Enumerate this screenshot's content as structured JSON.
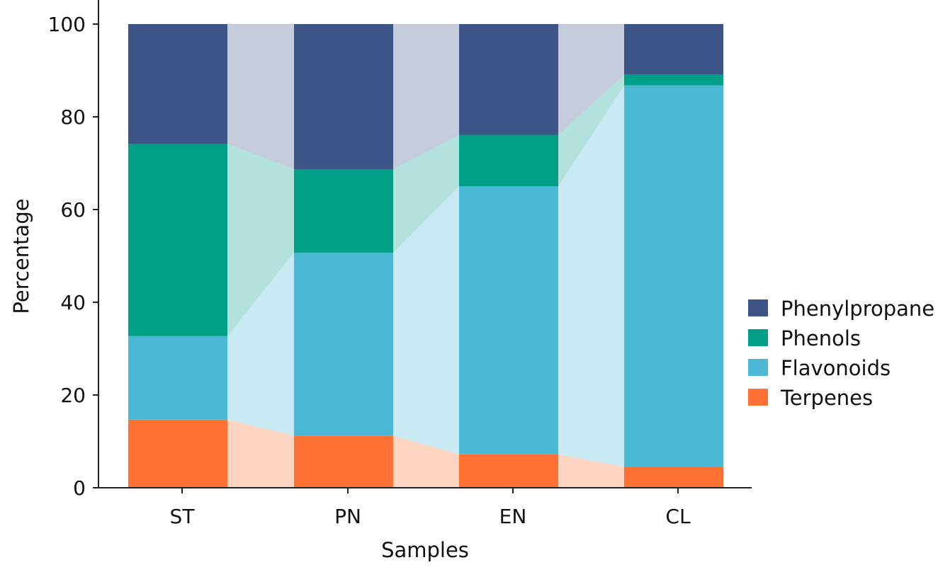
{
  "chart_data": {
    "type": "bar",
    "stacked": true,
    "percent": true,
    "connector_bands": true,
    "title": "",
    "xlabel": "Samples",
    "ylabel": "Percentage",
    "ylim": [
      0,
      100
    ],
    "yticks": [
      "0",
      "20",
      "40",
      "60",
      "80",
      "100"
    ],
    "categories": [
      "ST",
      "PN",
      "EN",
      "CL"
    ],
    "series": [
      {
        "name": "Terpenes",
        "color": "#ff7133",
        "values": [
          14.7,
          11.2,
          7.2,
          4.5
        ]
      },
      {
        "name": "Flavonoids",
        "color": "#4bb9d6",
        "values": [
          18.0,
          39.5,
          57.8,
          82.3
        ]
      },
      {
        "name": "Phenols",
        "color": "#00a088",
        "values": [
          41.5,
          18.0,
          11.1,
          2.3
        ]
      },
      {
        "name": "Phenylpropane",
        "color": "#3c5488",
        "values": [
          25.8,
          31.3,
          23.9,
          10.9
        ]
      }
    ],
    "legend": {
      "position": "right",
      "order": [
        "Phenylpropane",
        "Phenols",
        "Flavonoids",
        "Terpenes"
      ]
    },
    "grid": false
  }
}
